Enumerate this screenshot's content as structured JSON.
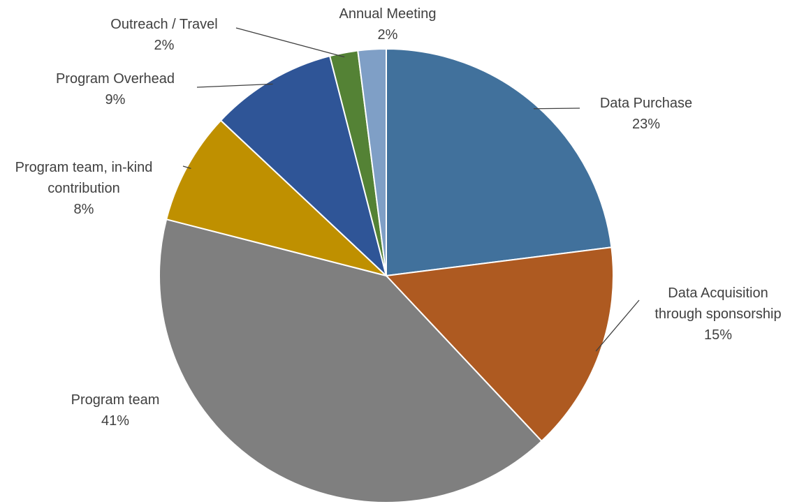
{
  "chart_data": {
    "type": "pie",
    "categories": [
      "Data Purchase",
      "Data Acquisition through sponsorship",
      "Program team",
      "Program team, in-kind contribution",
      "Program Overhead",
      "Outreach / Travel",
      "Annual Meeting"
    ],
    "values": [
      23,
      15,
      41,
      8,
      9,
      2,
      2
    ],
    "value_labels": [
      "23%",
      "15%",
      "41%",
      "8%",
      "9%",
      "2%",
      "2%"
    ],
    "colors": [
      "#41719c",
      "#ae5a21",
      "#7f7f7f",
      "#bf9000",
      "#2f5597",
      "#548235",
      "#7f9fc6"
    ]
  }
}
